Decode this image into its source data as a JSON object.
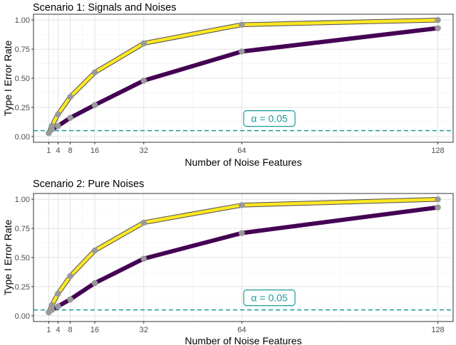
{
  "chart_data": [
    {
      "type": "line",
      "title": "Scenario 1: Signals and Noises",
      "xlabel": "Number of Noise Features",
      "ylabel": "Type I Error Rate",
      "x": [
        1,
        2,
        4,
        8,
        16,
        32,
        64,
        128
      ],
      "x_ticks": [
        1,
        4,
        8,
        16,
        32,
        64,
        128
      ],
      "y_ticks": [
        0.0,
        0.25,
        0.5,
        0.75,
        1.0
      ],
      "y_tick_labels": [
        "0.00",
        "0.25",
        "0.50",
        "0.75",
        "1.00"
      ],
      "xlim": [
        -4,
        133
      ],
      "ylim": [
        -0.05,
        1.05
      ],
      "grid": true,
      "series": [
        {
          "color": "#fde725",
          "values": [
            0.03,
            0.09,
            0.19,
            0.34,
            0.55,
            0.8,
            0.96,
            1.0
          ]
        },
        {
          "color": "#440154",
          "values": [
            0.03,
            0.06,
            0.09,
            0.16,
            0.27,
            0.48,
            0.73,
            0.93
          ]
        }
      ],
      "reference_line": {
        "y": 0.05,
        "color": "#1a9a9a",
        "label": "α = 0.05"
      }
    },
    {
      "type": "line",
      "title": "Scenario 2: Pure Noises",
      "xlabel": "Number of Noise Features",
      "ylabel": "Type I Error Rate",
      "x": [
        1,
        2,
        4,
        8,
        16,
        32,
        64,
        128
      ],
      "x_ticks": [
        1,
        4,
        8,
        16,
        32,
        64,
        128
      ],
      "y_ticks": [
        0.0,
        0.25,
        0.5,
        0.75,
        1.0
      ],
      "y_tick_labels": [
        "0.00",
        "0.25",
        "0.50",
        "0.75",
        "1.00"
      ],
      "xlim": [
        -4,
        133
      ],
      "ylim": [
        -0.05,
        1.05
      ],
      "grid": true,
      "series": [
        {
          "color": "#fde725",
          "values": [
            0.03,
            0.09,
            0.19,
            0.34,
            0.56,
            0.8,
            0.95,
            1.0
          ]
        },
        {
          "color": "#440154",
          "values": [
            0.03,
            0.05,
            0.08,
            0.14,
            0.28,
            0.49,
            0.71,
            0.93
          ]
        }
      ],
      "reference_line": {
        "y": 0.05,
        "color": "#1a9a9a",
        "label": "α = 0.05"
      }
    }
  ]
}
